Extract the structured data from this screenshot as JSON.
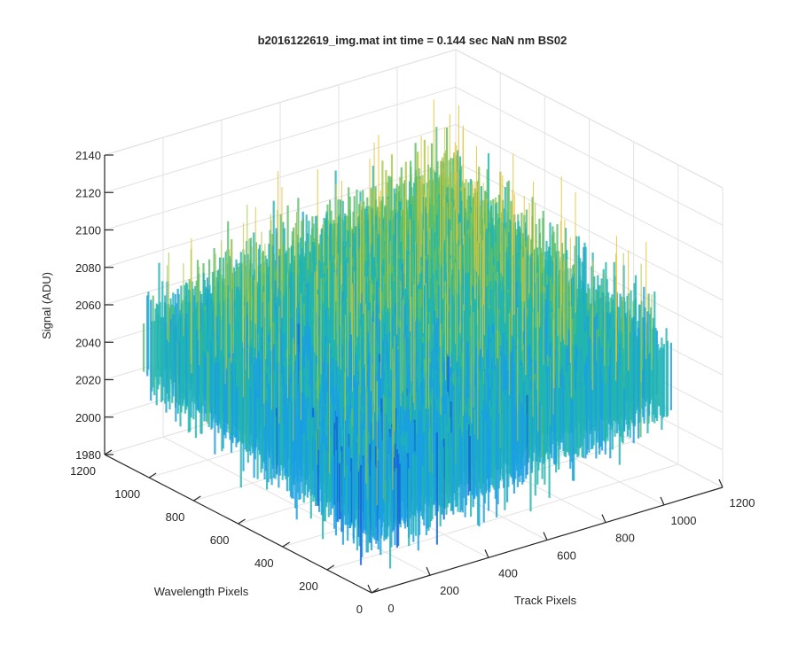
{
  "chart_data": {
    "type": "surface3d",
    "title": "b2016122619_img.mat int time = 0.144 sec  NaN nm BS02",
    "xlabel": "Track Pixels",
    "ylabel": "Wavelength Pixels",
    "zlabel": "Signal (ADU)",
    "xlim": [
      0,
      1200
    ],
    "ylim": [
      0,
      1200
    ],
    "zlim": [
      1980,
      2140
    ],
    "x_ticks": [
      "0",
      "200",
      "400",
      "600",
      "800",
      "1000",
      "1200"
    ],
    "y_ticks": [
      "0",
      "200",
      "400",
      "600",
      "800",
      "1000",
      "1200"
    ],
    "z_ticks": [
      "1980",
      "2000",
      "2020",
      "2040",
      "2060",
      "2080",
      "2100",
      "2120",
      "2140"
    ],
    "surface": {
      "x_range": [
        0,
        1024
      ],
      "y_range": [
        0,
        1024
      ],
      "z_mean": 2045,
      "z_min_approx": 1990,
      "z_max_approx": 2135,
      "corner_means": {
        "near": 2025,
        "left": 2050,
        "right": 2048,
        "back": 2080
      },
      "colormap": [
        "#1565d8",
        "#1aa0e0",
        "#22b5b0",
        "#5cbe6a",
        "#a8c84a",
        "#e6c33a"
      ],
      "grid": true
    }
  }
}
